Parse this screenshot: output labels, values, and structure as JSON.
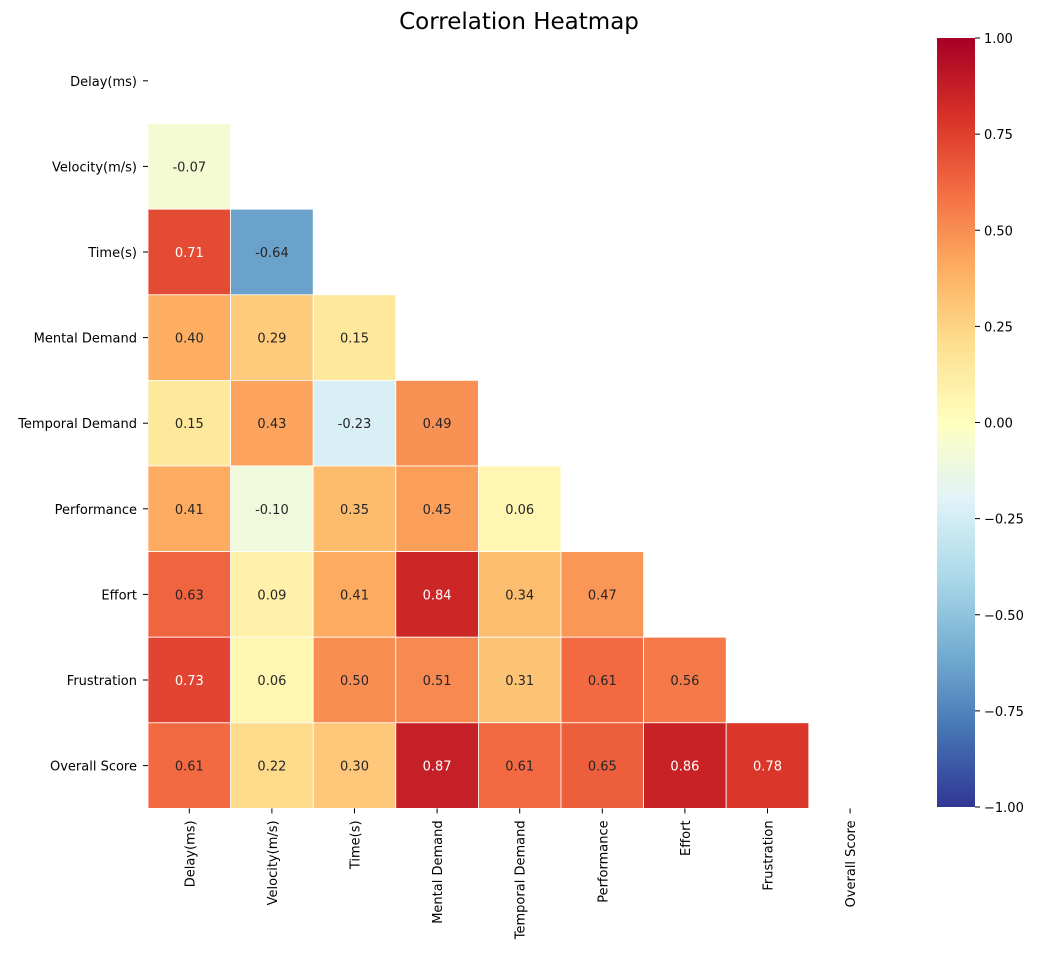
{
  "chart_data": {
    "type": "heatmap",
    "title": "Correlation Heatmap",
    "labels": [
      "Delay(ms)",
      "Velocity(m/s)",
      "Time(s)",
      "Mental Demand",
      "Temporal Demand",
      "Performance",
      "Effort",
      "Frustration",
      "Overall Score"
    ],
    "mask": "upper-triangle-including-diagonal",
    "matrix": [
      [
        null,
        null,
        null,
        null,
        null,
        null,
        null,
        null,
        null
      ],
      [
        -0.07,
        null,
        null,
        null,
        null,
        null,
        null,
        null,
        null
      ],
      [
        0.71,
        -0.64,
        null,
        null,
        null,
        null,
        null,
        null,
        null
      ],
      [
        0.4,
        0.29,
        0.15,
        null,
        null,
        null,
        null,
        null,
        null
      ],
      [
        0.15,
        0.43,
        -0.23,
        0.49,
        null,
        null,
        null,
        null,
        null
      ],
      [
        0.41,
        -0.1,
        0.35,
        0.45,
        0.06,
        null,
        null,
        null,
        null
      ],
      [
        0.63,
        0.09,
        0.41,
        0.84,
        0.34,
        0.47,
        null,
        null,
        null
      ],
      [
        0.73,
        0.06,
        0.5,
        0.51,
        0.31,
        0.61,
        0.56,
        null,
        null
      ],
      [
        0.61,
        0.22,
        0.3,
        0.87,
        0.61,
        0.65,
        0.86,
        0.78,
        null
      ]
    ],
    "value_format": "0.00",
    "colormap": "RdYlBu_r",
    "vmin": -1.0,
    "vmax": 1.0,
    "colorbar": {
      "ticks": [
        1.0,
        0.75,
        0.5,
        0.25,
        0.0,
        -0.25,
        -0.5,
        -0.75,
        -1.0
      ],
      "tick_labels": [
        "1.00",
        "0.75",
        "0.50",
        "0.25",
        "0.00",
        "−0.25",
        "−0.50",
        "−0.75",
        "−1.00"
      ]
    },
    "colors": {
      "stops": [
        "#313695",
        "#4575b4",
        "#74add1",
        "#abd9e9",
        "#e0f3f8",
        "#ffffbf",
        "#fee090",
        "#fdae61",
        "#f46d43",
        "#d73027",
        "#a50026"
      ],
      "grid_line": "#ffffff",
      "text_dark": "#262626",
      "text_light": "#ffffff"
    }
  }
}
